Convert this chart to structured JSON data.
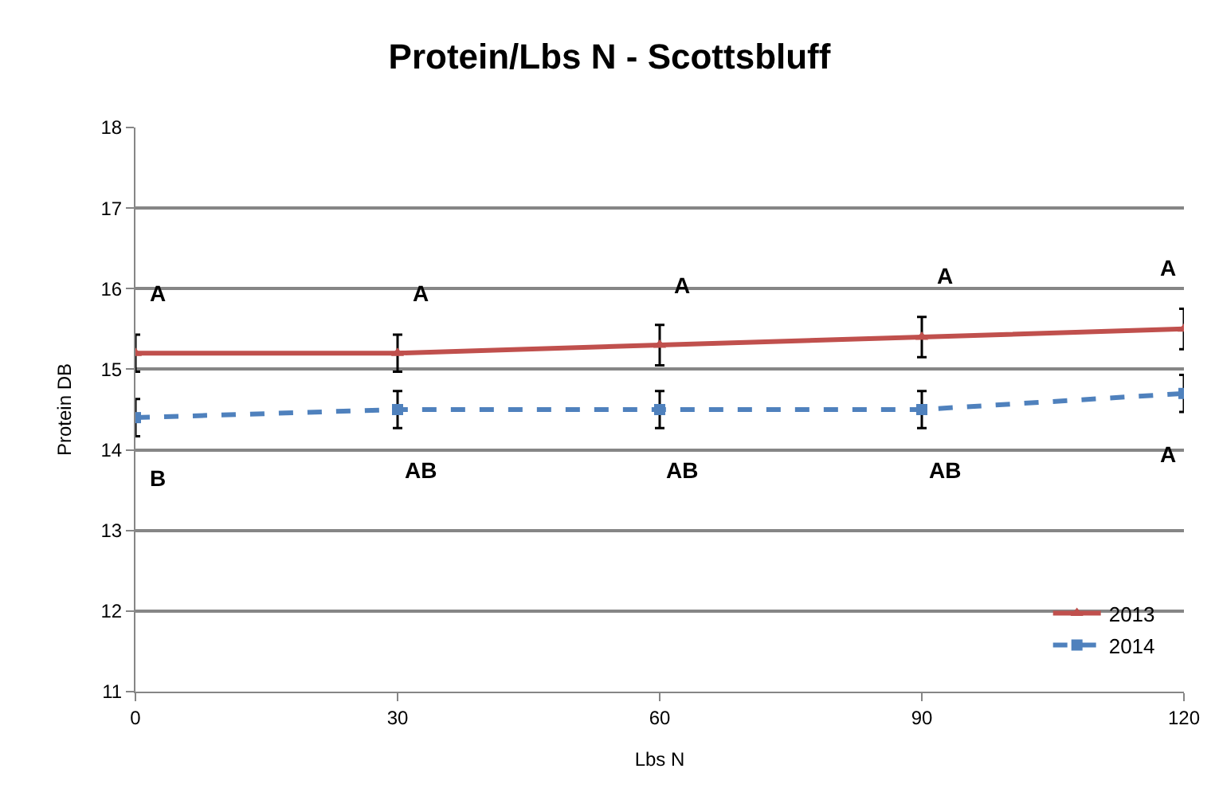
{
  "chart_data": {
    "type": "line",
    "title": "Protein/Lbs N - Scottsbluff",
    "xlabel": "Lbs N",
    "ylabel": "Protein DB",
    "x": [
      0,
      30,
      60,
      90,
      120
    ],
    "series": [
      {
        "name": "2013",
        "color": "#c0504d",
        "values": [
          15.2,
          15.2,
          15.3,
          15.4,
          15.5
        ],
        "errors": [
          0.23,
          0.23,
          0.25,
          0.25,
          0.25
        ],
        "marker": "triangle",
        "line_style": "solid"
      },
      {
        "name": "2014",
        "color": "#4f81bd",
        "values": [
          14.4,
          14.5,
          14.5,
          14.5,
          14.7
        ],
        "errors": [
          0.23,
          0.23,
          0.23,
          0.23,
          0.23
        ],
        "marker": "square",
        "line_style": "dashed"
      }
    ],
    "xlim": [
      0,
      120
    ],
    "xticks": [
      0,
      30,
      60,
      90,
      120
    ],
    "ylim": [
      11,
      18
    ],
    "yticks": [
      11,
      12,
      13,
      14,
      15,
      16,
      17,
      18
    ],
    "grid": "y",
    "legend": "bottom right",
    "annotations": [
      {
        "text": "A",
        "x": 0,
        "y": 15.2
      },
      {
        "text": "A",
        "x": 30,
        "y": 15.2
      },
      {
        "text": "A",
        "x": 60,
        "y": 15.3
      },
      {
        "text": "A",
        "x": 90,
        "y": 15.4
      },
      {
        "text": "A",
        "x": 120,
        "y": 15.5
      },
      {
        "text": "B",
        "x": 0,
        "y": 14.4
      },
      {
        "text": "AB",
        "x": 30,
        "y": 14.5
      },
      {
        "text": "AB",
        "x": 60,
        "y": 14.5
      },
      {
        "text": "AB",
        "x": 90,
        "y": 14.5
      },
      {
        "text": "A",
        "x": 120,
        "y": 14.7
      }
    ]
  }
}
